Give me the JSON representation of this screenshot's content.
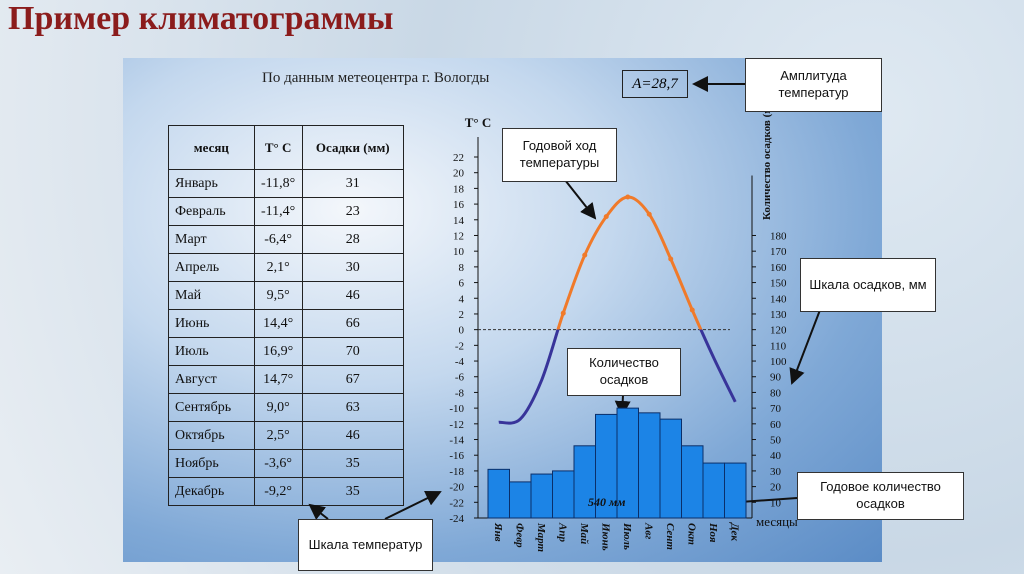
{
  "title": "Пример климатограммы",
  "source": "По данным метеоцентра г. Вологды",
  "amplitude": "A=28,7",
  "table": {
    "header": [
      "месяц",
      "T° C",
      "Осадки (мм)"
    ],
    "rows": [
      [
        "Январь",
        "-11,8°",
        "31"
      ],
      [
        "Февраль",
        "-11,4°",
        "23"
      ],
      [
        "Март",
        "-6,4°",
        "28"
      ],
      [
        "Апрель",
        "2,1°",
        "30"
      ],
      [
        "Май",
        "9,5°",
        "46"
      ],
      [
        "Июнь",
        "14,4°",
        "66"
      ],
      [
        "Июль",
        "16,9°",
        "70"
      ],
      [
        "Август",
        "14,7°",
        "67"
      ],
      [
        "Сентябрь",
        "9,0°",
        "63"
      ],
      [
        "Октябрь",
        "2,5°",
        "46"
      ],
      [
        "Ноябрь",
        "-3,6°",
        "35"
      ],
      [
        "Декабрь",
        "-9,2°",
        "35"
      ]
    ]
  },
  "callouts": [
    "Амплитуда температур",
    "Годовой ход температуры",
    "Шкала осадков, мм",
    "Количество осадков",
    "Годовое количество осадков",
    "Шкала температур"
  ],
  "chart_data": {
    "type": "bar",
    "ylabel": "T° C",
    "y2label": "Количество осадков (мм)",
    "xlabel": "месяцы",
    "categories": [
      "Янв",
      "Февр",
      "Март",
      "Апр",
      "Май",
      "Июнь",
      "Июль",
      "Авг",
      "Сент",
      "Окт",
      "Ноя",
      "Дек"
    ],
    "ylim": [
      -24,
      22
    ],
    "yticks": [
      -24,
      -22,
      -20,
      -18,
      -16,
      -14,
      -12,
      -10,
      -8,
      -6,
      -4,
      -2,
      0,
      2,
      4,
      6,
      8,
      10,
      12,
      14,
      16,
      18,
      20,
      22
    ],
    "y2lim": [
      0,
      230
    ],
    "y2ticks": [
      10,
      20,
      30,
      40,
      50,
      60,
      70,
      80,
      90,
      100,
      110,
      120,
      130,
      140,
      150,
      160,
      170,
      180
    ],
    "zero_line": true,
    "series": [
      {
        "type": "bar",
        "axis": "y2",
        "color": "#1c84e6",
        "values": [
          31,
          23,
          28,
          30,
          46,
          66,
          70,
          67,
          63,
          46,
          35,
          35
        ]
      },
      {
        "type": "line",
        "color": "#f07a2a",
        "color_below_zero": "#38349a",
        "values": [
          -11.8,
          -11.4,
          -6.4,
          2.1,
          9.5,
          14.4,
          16.9,
          14.7,
          9.0,
          2.5,
          -3.6,
          -9.2
        ]
      }
    ],
    "annotations": [
      "540 мм"
    ]
  }
}
